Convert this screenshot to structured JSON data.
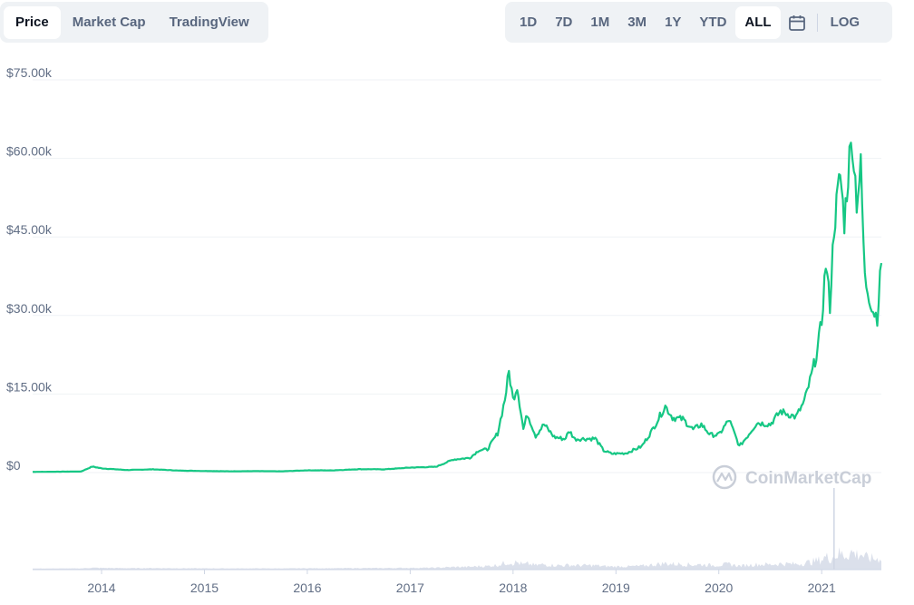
{
  "tabs": {
    "items": [
      {
        "label": "Price",
        "active": true
      },
      {
        "label": "Market Cap",
        "active": false
      },
      {
        "label": "TradingView",
        "active": false
      }
    ]
  },
  "ranges": {
    "items": [
      {
        "label": "1D",
        "active": false
      },
      {
        "label": "7D",
        "active": false
      },
      {
        "label": "1M",
        "active": false
      },
      {
        "label": "3M",
        "active": false
      },
      {
        "label": "1Y",
        "active": false
      },
      {
        "label": "YTD",
        "active": false
      },
      {
        "label": "ALL",
        "active": true
      }
    ],
    "calendar_icon": "calendar-icon",
    "log_label": "LOG"
  },
  "watermark": {
    "text": "CoinMarketCap",
    "icon": "coinmarketcap-logo-icon"
  },
  "chart_data": {
    "type": "line",
    "ylabels": [
      "$75.00k",
      "$60.00k",
      "$45.00k",
      "$30.00k",
      "$15.00k",
      "$0"
    ],
    "ylim": [
      0,
      75000
    ],
    "xlabels": [
      "2014",
      "2015",
      "2016",
      "2017",
      "2018",
      "2019",
      "2020",
      "2021"
    ],
    "xlim": [
      2013.33,
      2021.58
    ],
    "grid": true,
    "line_color": "#16c784",
    "volume_color": "#cfd6e4",
    "series": [
      {
        "values": [
          [
            2013.33,
            130
          ],
          [
            2013.8,
            200
          ],
          [
            2013.91,
            1150
          ],
          [
            2014.0,
            800
          ],
          [
            2014.25,
            480
          ],
          [
            2014.5,
            620
          ],
          [
            2014.75,
            380
          ],
          [
            2015.0,
            300
          ],
          [
            2015.25,
            240
          ],
          [
            2015.5,
            270
          ],
          [
            2015.75,
            240
          ],
          [
            2016.0,
            430
          ],
          [
            2016.25,
            420
          ],
          [
            2016.5,
            650
          ],
          [
            2016.75,
            620
          ],
          [
            2017.0,
            950
          ],
          [
            2017.25,
            1100
          ],
          [
            2017.42,
            2500
          ],
          [
            2017.58,
            2800
          ],
          [
            2017.67,
            4300
          ],
          [
            2017.75,
            4400
          ],
          [
            2017.85,
            7500
          ],
          [
            2017.92,
            14000
          ],
          [
            2017.96,
            19200
          ],
          [
            2018.0,
            14000
          ],
          [
            2018.04,
            16500
          ],
          [
            2018.1,
            8300
          ],
          [
            2018.14,
            11200
          ],
          [
            2018.22,
            7000
          ],
          [
            2018.3,
            9200
          ],
          [
            2018.4,
            6800
          ],
          [
            2018.5,
            6400
          ],
          [
            2018.55,
            7900
          ],
          [
            2018.6,
            6400
          ],
          [
            2018.8,
            6500
          ],
          [
            2018.88,
            4200
          ],
          [
            2018.96,
            3600
          ],
          [
            2019.1,
            3700
          ],
          [
            2019.25,
            5000
          ],
          [
            2019.35,
            8000
          ],
          [
            2019.48,
            12700
          ],
          [
            2019.55,
            10500
          ],
          [
            2019.65,
            10200
          ],
          [
            2019.75,
            8200
          ],
          [
            2019.83,
            9200
          ],
          [
            2019.92,
            7200
          ],
          [
            2020.0,
            7200
          ],
          [
            2020.1,
            10100
          ],
          [
            2020.2,
            5000
          ],
          [
            2020.28,
            7000
          ],
          [
            2020.37,
            9500
          ],
          [
            2020.5,
            9200
          ],
          [
            2020.6,
            11700
          ],
          [
            2020.75,
            10600
          ],
          [
            2020.83,
            13500
          ],
          [
            2020.9,
            18500
          ],
          [
            2020.96,
            23500
          ],
          [
            2021.0,
            29000
          ],
          [
            2021.04,
            40000
          ],
          [
            2021.08,
            32000
          ],
          [
            2021.12,
            47000
          ],
          [
            2021.18,
            57000
          ],
          [
            2021.22,
            48000
          ],
          [
            2021.27,
            60000
          ],
          [
            2021.3,
            63500
          ],
          [
            2021.34,
            52000
          ],
          [
            2021.38,
            58000
          ],
          [
            2021.42,
            37000
          ],
          [
            2021.46,
            34000
          ],
          [
            2021.5,
            31000
          ],
          [
            2021.54,
            29800
          ],
          [
            2021.58,
            40000
          ]
        ]
      }
    ]
  }
}
